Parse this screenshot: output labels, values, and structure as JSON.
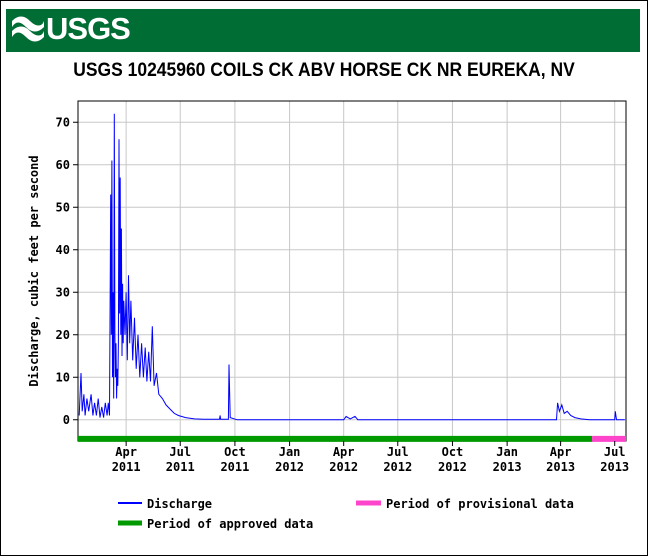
{
  "header": {
    "logo_text": "USGS",
    "banner_color": "#006d35"
  },
  "chart_data": {
    "type": "line",
    "title": "USGS 10245960 COILS CK ABV HORSE CK NR EUREKA, NV",
    "ylabel": "Discharge, cubic feet per second",
    "xlabel": "",
    "ylim": [
      -5,
      75
    ],
    "xlim": [
      "2011-01-10",
      "2013-07-20"
    ],
    "yticks": [
      0,
      10,
      20,
      30,
      40,
      50,
      60,
      70
    ],
    "xticks": [
      {
        "date": "2011-04-01",
        "line1": "Apr",
        "line2": "2011"
      },
      {
        "date": "2011-07-01",
        "line1": "Jul",
        "line2": "2011"
      },
      {
        "date": "2011-10-01",
        "line1": "Oct",
        "line2": "2011"
      },
      {
        "date": "2012-01-01",
        "line1": "Jan",
        "line2": "2012"
      },
      {
        "date": "2012-04-01",
        "line1": "Apr",
        "line2": "2012"
      },
      {
        "date": "2012-07-01",
        "line1": "Jul",
        "line2": "2012"
      },
      {
        "date": "2012-10-01",
        "line1": "Oct",
        "line2": "2012"
      },
      {
        "date": "2013-01-01",
        "line1": "Jan",
        "line2": "2013"
      },
      {
        "date": "2013-04-01",
        "line1": "Apr",
        "line2": "2013"
      },
      {
        "date": "2013-07-01",
        "line1": "Jul",
        "line2": "2013"
      }
    ],
    "grid": true,
    "series": [
      {
        "name": "Discharge",
        "color": "#0000ff",
        "points": [
          [
            "2011-01-12",
            1
          ],
          [
            "2011-01-15",
            11
          ],
          [
            "2011-01-17",
            2
          ],
          [
            "2011-01-20",
            6
          ],
          [
            "2011-01-22",
            1
          ],
          [
            "2011-01-25",
            5
          ],
          [
            "2011-01-28",
            2
          ],
          [
            "2011-02-01",
            6
          ],
          [
            "2011-02-04",
            1
          ],
          [
            "2011-02-07",
            4
          ],
          [
            "2011-02-10",
            1
          ],
          [
            "2011-02-13",
            5
          ],
          [
            "2011-02-16",
            0.5
          ],
          [
            "2011-02-19",
            3
          ],
          [
            "2011-02-22",
            0.5
          ],
          [
            "2011-02-25",
            4
          ],
          [
            "2011-02-28",
            1
          ],
          [
            "2011-03-02",
            4
          ],
          [
            "2011-03-04",
            1
          ],
          [
            "2011-03-06",
            53
          ],
          [
            "2011-03-07",
            20
          ],
          [
            "2011-03-08",
            61
          ],
          [
            "2011-03-09",
            10
          ],
          [
            "2011-03-10",
            30
          ],
          [
            "2011-03-11",
            5
          ],
          [
            "2011-03-12",
            72
          ],
          [
            "2011-03-13",
            20
          ],
          [
            "2011-03-14",
            10
          ],
          [
            "2011-03-15",
            18
          ],
          [
            "2011-03-16",
            5
          ],
          [
            "2011-03-17",
            12
          ],
          [
            "2011-03-18",
            8
          ],
          [
            "2011-03-19",
            18
          ],
          [
            "2011-03-20",
            66
          ],
          [
            "2011-03-21",
            25
          ],
          [
            "2011-03-22",
            57
          ],
          [
            "2011-03-23",
            20
          ],
          [
            "2011-03-24",
            45
          ],
          [
            "2011-03-25",
            15
          ],
          [
            "2011-03-26",
            32
          ],
          [
            "2011-03-27",
            18
          ],
          [
            "2011-03-28",
            28
          ],
          [
            "2011-03-30",
            20
          ],
          [
            "2011-04-01",
            30
          ],
          [
            "2011-04-03",
            14
          ],
          [
            "2011-04-05",
            34
          ],
          [
            "2011-04-07",
            18
          ],
          [
            "2011-04-09",
            28
          ],
          [
            "2011-04-12",
            14
          ],
          [
            "2011-04-15",
            24
          ],
          [
            "2011-04-18",
            12
          ],
          [
            "2011-04-21",
            20
          ],
          [
            "2011-04-24",
            10
          ],
          [
            "2011-04-27",
            18
          ],
          [
            "2011-04-30",
            10
          ],
          [
            "2011-05-03",
            17
          ],
          [
            "2011-05-06",
            9
          ],
          [
            "2011-05-09",
            16
          ],
          [
            "2011-05-12",
            9
          ],
          [
            "2011-05-15",
            22
          ],
          [
            "2011-05-18",
            8
          ],
          [
            "2011-05-22",
            11
          ],
          [
            "2011-05-26",
            6
          ],
          [
            "2011-06-01",
            5
          ],
          [
            "2011-06-07",
            3.5
          ],
          [
            "2011-06-14",
            2.5
          ],
          [
            "2011-06-21",
            1.5
          ],
          [
            "2011-06-28",
            1
          ],
          [
            "2011-07-10",
            0.5
          ],
          [
            "2011-07-25",
            0.2
          ],
          [
            "2011-08-10",
            0.1
          ],
          [
            "2011-09-05",
            0.1
          ],
          [
            "2011-09-06",
            1
          ],
          [
            "2011-09-07",
            0.1
          ],
          [
            "2011-09-20",
            0.1
          ],
          [
            "2011-09-21",
            13
          ],
          [
            "2011-09-23",
            0.5
          ],
          [
            "2011-10-05",
            0
          ],
          [
            "2012-04-01",
            0
          ],
          [
            "2012-04-05",
            0.8
          ],
          [
            "2012-04-12",
            0.2
          ],
          [
            "2012-04-20",
            0.8
          ],
          [
            "2012-04-25",
            0
          ],
          [
            "2013-03-25",
            0
          ],
          [
            "2013-03-27",
            4
          ],
          [
            "2013-03-30",
            2
          ],
          [
            "2013-04-03",
            3.5
          ],
          [
            "2013-04-07",
            1.5
          ],
          [
            "2013-04-12",
            2
          ],
          [
            "2013-04-18",
            1
          ],
          [
            "2013-04-25",
            0.5
          ],
          [
            "2013-05-05",
            0.2
          ],
          [
            "2013-05-20",
            0
          ],
          [
            "2013-07-01",
            0
          ],
          [
            "2013-07-02",
            2
          ],
          [
            "2013-07-04",
            0
          ],
          [
            "2013-07-18",
            0
          ]
        ]
      }
    ],
    "approval_bars": [
      {
        "name": "Period of approved data",
        "color": "#009900",
        "start": "2011-01-10",
        "end": "2013-05-24"
      },
      {
        "name": "Period of provisional data",
        "color": "#ff44cc",
        "start": "2013-05-24",
        "end": "2013-07-20"
      }
    ],
    "legend": {
      "placement": "bottom",
      "discharge": "Discharge",
      "provisional": "Period of provisional data",
      "approved": "Period of approved data"
    }
  }
}
